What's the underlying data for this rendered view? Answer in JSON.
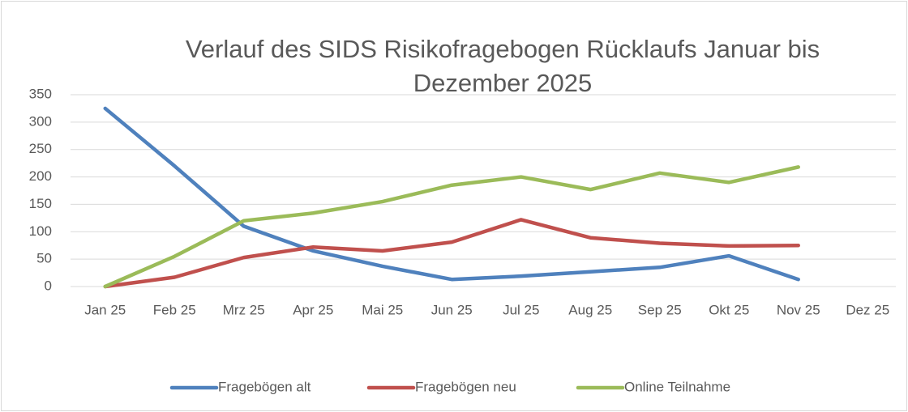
{
  "chart_data": {
    "type": "line",
    "title": "Verlauf des SIDS Risikofragebogen Rücklaufs  Januar bis Dezember 2025",
    "categories": [
      "Jan 25",
      "Feb 25",
      "Mrz 25",
      "Apr 25",
      "Mai 25",
      "Jun 25",
      "Jul 25",
      "Aug 25",
      "Sep 25",
      "Okt 25",
      "Nov 25",
      "Dez 25"
    ],
    "series": [
      {
        "name": "Fragebögen alt",
        "color": "#4f81bd",
        "values": [
          325,
          220,
          110,
          65,
          37,
          13,
          19,
          27,
          35,
          56,
          13,
          null
        ]
      },
      {
        "name": "Fragebögen neu",
        "color": "#c0504d",
        "values": [
          0,
          17,
          53,
          72,
          65,
          81,
          122,
          89,
          79,
          74,
          75,
          null
        ]
      },
      {
        "name": "Online Teilnahme",
        "color": "#9bbb59",
        "values": [
          0,
          55,
          120,
          134,
          155,
          185,
          200,
          177,
          207,
          190,
          218,
          null
        ]
      }
    ],
    "ylim": [
      0,
      350
    ],
    "yticks": [
      0,
      50,
      100,
      150,
      200,
      250,
      300,
      350
    ],
    "grid": true,
    "legend": "bottom"
  }
}
